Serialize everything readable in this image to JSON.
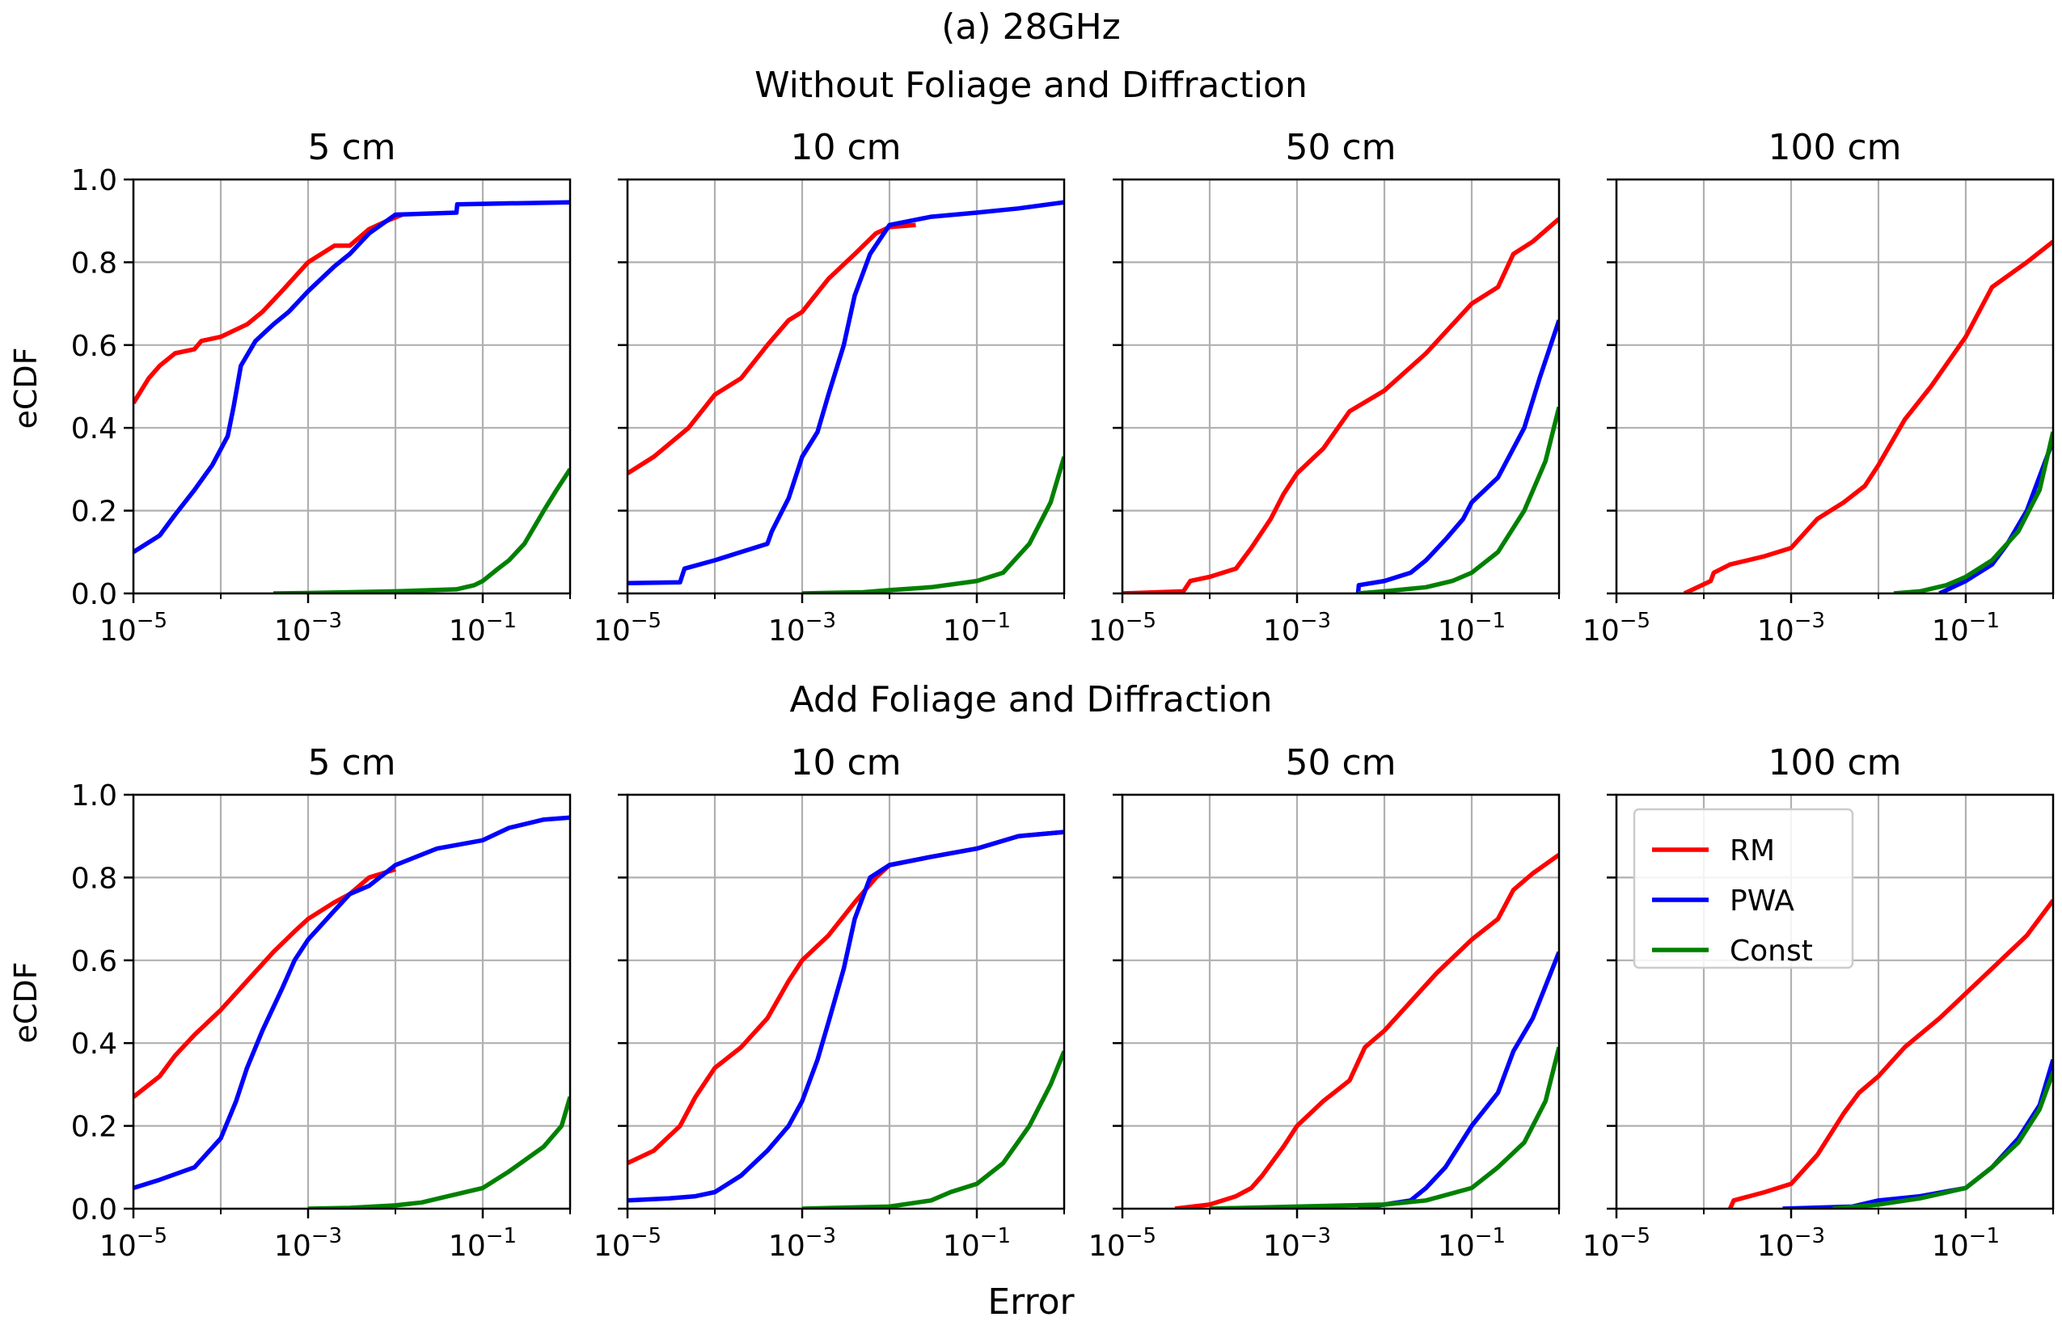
{
  "figure": {
    "title": "(a) 28GHz",
    "row_titles": [
      "Without Foliage and Diffraction",
      "Add Foliage and Diffraction"
    ],
    "xlabel": "Error",
    "ylabel": "eCDF",
    "legend_location": "upper-left of bottom-right panel"
  },
  "series_styles": [
    {
      "name": "RM",
      "color": "#ff0000"
    },
    {
      "name": "PWA",
      "color": "#0000ff"
    },
    {
      "name": "Const",
      "color": "#008000"
    }
  ],
  "chart_data": [
    {
      "type": "line",
      "row": 0,
      "col": 0,
      "title": "5 cm",
      "x_scale": "log",
      "xlim": [
        1e-05,
        1
      ],
      "ylim": [
        0,
        1.0
      ],
      "grid": true,
      "xticks": [
        "10^-5",
        "10^-3",
        "10^-1"
      ],
      "yticks": [
        "0.0",
        "0.2",
        "0.4",
        "0.6",
        "0.8",
        "1.0"
      ],
      "series": [
        {
          "name": "RM",
          "x": [
            1e-05,
            1.5e-05,
            2e-05,
            3e-05,
            5e-05,
            6e-05,
            0.0001,
            0.0002,
            0.0003,
            0.0005,
            0.001,
            0.002,
            0.003,
            0.005,
            0.008,
            0.012
          ],
          "y": [
            0.46,
            0.52,
            0.55,
            0.58,
            0.59,
            0.61,
            0.62,
            0.65,
            0.68,
            0.73,
            0.8,
            0.84,
            0.84,
            0.88,
            0.9,
            0.915
          ]
        },
        {
          "name": "PWA",
          "x": [
            1e-05,
            2e-05,
            3e-05,
            5e-05,
            8e-05,
            0.00012,
            0.00014,
            0.00017,
            0.00025,
            0.0004,
            0.0006,
            0.001,
            0.002,
            0.003,
            0.005,
            0.01,
            0.05,
            0.051,
            1
          ],
          "y": [
            0.1,
            0.14,
            0.19,
            0.25,
            0.31,
            0.38,
            0.45,
            0.55,
            0.61,
            0.65,
            0.68,
            0.73,
            0.79,
            0.82,
            0.87,
            0.915,
            0.92,
            0.94,
            0.945
          ]
        },
        {
          "name": "Const",
          "x": [
            0.0004,
            0.001,
            0.01,
            0.05,
            0.08,
            0.1,
            0.15,
            0.2,
            0.3,
            0.5,
            0.7,
            1
          ],
          "y": [
            0.0,
            0.001,
            0.005,
            0.01,
            0.02,
            0.03,
            0.06,
            0.08,
            0.12,
            0.2,
            0.25,
            0.3
          ]
        }
      ]
    },
    {
      "type": "line",
      "row": 0,
      "col": 1,
      "title": "10 cm",
      "x_scale": "log",
      "xlim": [
        1e-05,
        1
      ],
      "ylim": [
        0,
        1.0
      ],
      "grid": true,
      "xticks": [
        "10^-5",
        "10^-3",
        "10^-1"
      ],
      "yticks": [
        "0.0",
        "0.2",
        "0.4",
        "0.6",
        "0.8",
        "1.0"
      ],
      "series": [
        {
          "name": "RM",
          "x": [
            1e-05,
            2e-05,
            5e-05,
            0.0001,
            0.0002,
            0.0004,
            0.0007,
            0.001,
            0.002,
            0.004,
            0.007,
            0.01,
            0.02
          ],
          "y": [
            0.29,
            0.33,
            0.4,
            0.48,
            0.52,
            0.6,
            0.66,
            0.68,
            0.76,
            0.82,
            0.87,
            0.885,
            0.89
          ]
        },
        {
          "name": "PWA",
          "x": [
            1e-05,
            4e-05,
            4.5e-05,
            0.0001,
            0.0002,
            0.0004,
            0.00045,
            0.0007,
            0.001,
            0.0015,
            0.002,
            0.003,
            0.004,
            0.006,
            0.01,
            0.03,
            0.1,
            0.3,
            1
          ],
          "y": [
            0.025,
            0.027,
            0.06,
            0.08,
            0.1,
            0.12,
            0.15,
            0.23,
            0.33,
            0.39,
            0.48,
            0.6,
            0.72,
            0.82,
            0.89,
            0.91,
            0.92,
            0.93,
            0.945
          ]
        },
        {
          "name": "Const",
          "x": [
            0.001,
            0.005,
            0.01,
            0.03,
            0.1,
            0.2,
            0.4,
            0.7,
            1
          ],
          "y": [
            0.0,
            0.003,
            0.008,
            0.015,
            0.03,
            0.05,
            0.12,
            0.22,
            0.33
          ]
        }
      ]
    },
    {
      "type": "line",
      "row": 0,
      "col": 2,
      "title": "50 cm",
      "x_scale": "log",
      "xlim": [
        1e-05,
        1
      ],
      "ylim": [
        0,
        1.0
      ],
      "grid": true,
      "xticks": [
        "10^-5",
        "10^-3",
        "10^-1"
      ],
      "yticks": [
        "0.0",
        "0.2",
        "0.4",
        "0.6",
        "0.8",
        "1.0"
      ],
      "series": [
        {
          "name": "RM",
          "x": [
            1e-05,
            5e-05,
            6e-05,
            0.0001,
            0.0002,
            0.0003,
            0.0005,
            0.0007,
            0.001,
            0.002,
            0.004,
            0.01,
            0.03,
            0.1,
            0.2,
            0.3,
            0.5,
            1
          ],
          "y": [
            0.0,
            0.005,
            0.03,
            0.04,
            0.06,
            0.11,
            0.18,
            0.24,
            0.29,
            0.35,
            0.44,
            0.49,
            0.58,
            0.7,
            0.74,
            0.82,
            0.85,
            0.905
          ]
        },
        {
          "name": "PWA",
          "x": [
            0.005,
            0.0051,
            0.01,
            0.02,
            0.03,
            0.05,
            0.08,
            0.1,
            0.2,
            0.4,
            0.6,
            1
          ],
          "y": [
            0.0,
            0.02,
            0.03,
            0.05,
            0.08,
            0.13,
            0.18,
            0.22,
            0.28,
            0.4,
            0.52,
            0.66
          ]
        },
        {
          "name": "Const",
          "x": [
            0.005,
            0.01,
            0.03,
            0.06,
            0.1,
            0.2,
            0.4,
            0.7,
            1
          ],
          "y": [
            0.0,
            0.005,
            0.015,
            0.03,
            0.05,
            0.1,
            0.2,
            0.32,
            0.45
          ]
        }
      ]
    },
    {
      "type": "line",
      "row": 0,
      "col": 3,
      "title": "100 cm",
      "x_scale": "log",
      "xlim": [
        1e-05,
        1
      ],
      "ylim": [
        0,
        1.0
      ],
      "grid": true,
      "xticks": [
        "10^-5",
        "10^-3",
        "10^-1"
      ],
      "yticks": [
        "0.0",
        "0.2",
        "0.4",
        "0.6",
        "0.8",
        "1.0"
      ],
      "series": [
        {
          "name": "RM",
          "x": [
            6e-05,
            0.00012,
            0.00013,
            0.0002,
            0.0005,
            0.001,
            0.002,
            0.004,
            0.007,
            0.01,
            0.02,
            0.04,
            0.1,
            0.2,
            0.5,
            1
          ],
          "y": [
            0.0,
            0.03,
            0.05,
            0.07,
            0.09,
            0.11,
            0.18,
            0.22,
            0.26,
            0.31,
            0.42,
            0.5,
            0.62,
            0.74,
            0.8,
            0.85
          ]
        },
        {
          "name": "PWA",
          "x": [
            0.05,
            0.1,
            0.2,
            0.3,
            0.5,
            1
          ],
          "y": [
            0.0,
            0.03,
            0.07,
            0.12,
            0.2,
            0.37
          ]
        },
        {
          "name": "Const",
          "x": [
            0.015,
            0.03,
            0.06,
            0.1,
            0.2,
            0.4,
            0.7,
            1
          ],
          "y": [
            0.0,
            0.005,
            0.02,
            0.04,
            0.08,
            0.15,
            0.25,
            0.39
          ]
        }
      ]
    },
    {
      "type": "line",
      "row": 1,
      "col": 0,
      "title": "5 cm",
      "x_scale": "log",
      "xlim": [
        1e-05,
        1
      ],
      "ylim": [
        0,
        1.0
      ],
      "grid": true,
      "xticks": [
        "10^-5",
        "10^-3",
        "10^-1"
      ],
      "yticks": [
        "0.0",
        "0.2",
        "0.4",
        "0.6",
        "0.8",
        "1.0"
      ],
      "series": [
        {
          "name": "RM",
          "x": [
            1e-05,
            2e-05,
            3e-05,
            5e-05,
            0.0001,
            0.0002,
            0.0004,
            0.0007,
            0.001,
            0.002,
            0.003,
            0.005,
            0.01
          ],
          "y": [
            0.27,
            0.32,
            0.37,
            0.42,
            0.48,
            0.55,
            0.62,
            0.67,
            0.7,
            0.74,
            0.76,
            0.8,
            0.82
          ]
        },
        {
          "name": "PWA",
          "x": [
            1e-05,
            2e-05,
            5e-05,
            0.0001,
            0.00015,
            0.0002,
            0.0003,
            0.0005,
            0.0007,
            0.001,
            0.002,
            0.003,
            0.005,
            0.01,
            0.03,
            0.1,
            0.2,
            0.5,
            1
          ],
          "y": [
            0.05,
            0.07,
            0.1,
            0.17,
            0.26,
            0.34,
            0.43,
            0.53,
            0.6,
            0.65,
            0.72,
            0.76,
            0.78,
            0.83,
            0.87,
            0.89,
            0.92,
            0.94,
            0.945
          ]
        },
        {
          "name": "Const",
          "x": [
            0.001,
            0.003,
            0.01,
            0.02,
            0.04,
            0.1,
            0.2,
            0.5,
            0.8,
            1
          ],
          "y": [
            0.0,
            0.002,
            0.008,
            0.015,
            0.03,
            0.05,
            0.09,
            0.15,
            0.2,
            0.27
          ]
        }
      ]
    },
    {
      "type": "line",
      "row": 1,
      "col": 1,
      "title": "10 cm",
      "x_scale": "log",
      "xlim": [
        1e-05,
        1
      ],
      "ylim": [
        0,
        1.0
      ],
      "grid": true,
      "xticks": [
        "10^-5",
        "10^-3",
        "10^-1"
      ],
      "yticks": [
        "0.0",
        "0.2",
        "0.4",
        "0.6",
        "0.8",
        "1.0"
      ],
      "series": [
        {
          "name": "RM",
          "x": [
            1e-05,
            2e-05,
            4e-05,
            6e-05,
            0.0001,
            0.0002,
            0.0004,
            0.0007,
            0.001,
            0.002,
            0.004,
            0.007,
            0.01,
            0.03,
            0.1,
            0.3,
            1
          ],
          "y": [
            0.11,
            0.14,
            0.2,
            0.27,
            0.34,
            0.39,
            0.46,
            0.55,
            0.6,
            0.66,
            0.74,
            0.8,
            0.83,
            0.85,
            0.87,
            0.9,
            0.91
          ]
        },
        {
          "name": "PWA",
          "x": [
            1e-05,
            3e-05,
            6e-05,
            0.0001,
            0.0002,
            0.0004,
            0.0007,
            0.001,
            0.0015,
            0.002,
            0.003,
            0.004,
            0.006,
            0.01,
            0.03,
            0.1,
            0.3,
            1
          ],
          "y": [
            0.02,
            0.025,
            0.03,
            0.04,
            0.08,
            0.14,
            0.2,
            0.26,
            0.36,
            0.45,
            0.58,
            0.7,
            0.8,
            0.83,
            0.85,
            0.87,
            0.9,
            0.91
          ]
        },
        {
          "name": "Const",
          "x": [
            0.001,
            0.01,
            0.03,
            0.05,
            0.1,
            0.2,
            0.4,
            0.7,
            1
          ],
          "y": [
            0.0,
            0.005,
            0.02,
            0.04,
            0.06,
            0.11,
            0.2,
            0.3,
            0.38
          ]
        }
      ]
    },
    {
      "type": "line",
      "row": 1,
      "col": 2,
      "title": "50 cm",
      "x_scale": "log",
      "xlim": [
        1e-05,
        1
      ],
      "ylim": [
        0,
        1.0
      ],
      "grid": true,
      "xticks": [
        "10^-5",
        "10^-3",
        "10^-1"
      ],
      "yticks": [
        "0.0",
        "0.2",
        "0.4",
        "0.6",
        "0.8",
        "1.0"
      ],
      "series": [
        {
          "name": "RM",
          "x": [
            4e-05,
            0.0001,
            0.0002,
            0.0003,
            0.0004,
            0.0007,
            0.001,
            0.002,
            0.004,
            0.006,
            0.01,
            0.02,
            0.04,
            0.1,
            0.2,
            0.3,
            0.5,
            1
          ],
          "y": [
            0.0,
            0.01,
            0.03,
            0.05,
            0.08,
            0.15,
            0.2,
            0.26,
            0.31,
            0.39,
            0.43,
            0.5,
            0.57,
            0.65,
            0.7,
            0.77,
            0.81,
            0.855
          ]
        },
        {
          "name": "PWA",
          "x": [
            0.005,
            0.01,
            0.02,
            0.03,
            0.05,
            0.1,
            0.2,
            0.3,
            0.5,
            1
          ],
          "y": [
            0.0,
            0.01,
            0.02,
            0.05,
            0.1,
            0.2,
            0.28,
            0.38,
            0.46,
            0.62
          ]
        },
        {
          "name": "Const",
          "x": [
            0.0001,
            0.001,
            0.01,
            0.03,
            0.1,
            0.2,
            0.4,
            0.7,
            1
          ],
          "y": [
            0.0,
            0.005,
            0.01,
            0.02,
            0.05,
            0.1,
            0.16,
            0.26,
            0.39
          ]
        }
      ]
    },
    {
      "type": "line",
      "row": 1,
      "col": 3,
      "title": "100 cm",
      "x_scale": "log",
      "xlim": [
        1e-05,
        1
      ],
      "ylim": [
        0,
        1.0
      ],
      "grid": true,
      "xticks": [
        "10^-5",
        "10^-3",
        "10^-1"
      ],
      "yticks": [
        "0.0",
        "0.2",
        "0.4",
        "0.6",
        "0.8",
        "1.0"
      ],
      "legend": [
        "RM",
        "PWA",
        "Const"
      ],
      "series": [
        {
          "name": "RM",
          "x": [
            0.0002,
            0.00022,
            0.0005,
            0.001,
            0.002,
            0.004,
            0.006,
            0.01,
            0.02,
            0.05,
            0.1,
            0.2,
            0.5,
            1
          ],
          "y": [
            0.0,
            0.02,
            0.04,
            0.06,
            0.13,
            0.23,
            0.28,
            0.32,
            0.39,
            0.46,
            0.52,
            0.58,
            0.66,
            0.745
          ]
        },
        {
          "name": "PWA",
          "x": [
            0.0008,
            0.005,
            0.01,
            0.03,
            0.1,
            0.2,
            0.4,
            0.7,
            1
          ],
          "y": [
            0.0,
            0.005,
            0.02,
            0.03,
            0.05,
            0.1,
            0.17,
            0.25,
            0.36
          ]
        },
        {
          "name": "Const",
          "x": [
            0.003,
            0.01,
            0.03,
            0.1,
            0.2,
            0.4,
            0.7,
            1
          ],
          "y": [
            0.0,
            0.01,
            0.025,
            0.05,
            0.1,
            0.16,
            0.24,
            0.33
          ]
        }
      ]
    }
  ]
}
